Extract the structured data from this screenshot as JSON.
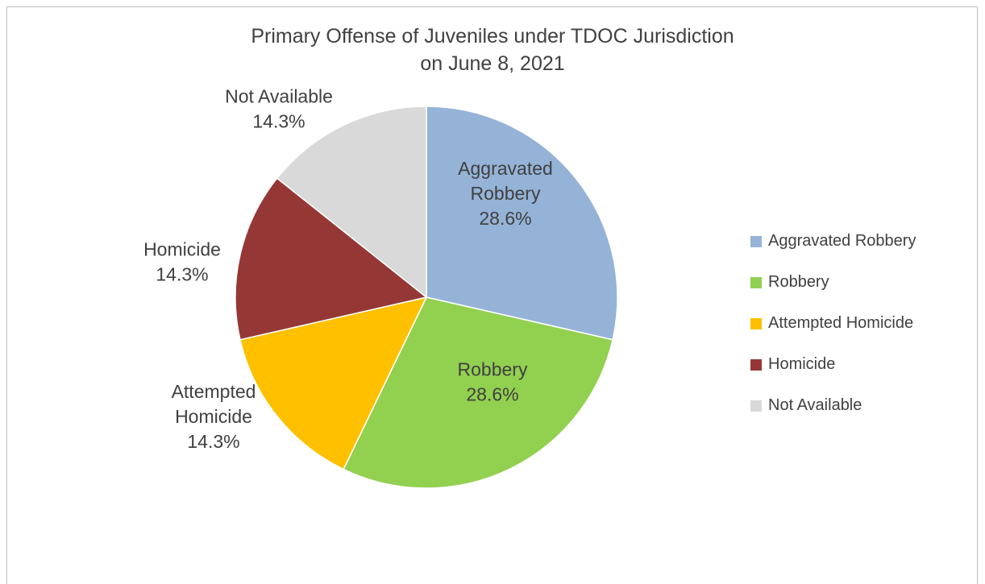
{
  "chart_data": {
    "type": "pie",
    "title": "Primary Offense of Juveniles under TDOC Jurisdiction",
    "subtitle": "on June 8, 2021",
    "legend_position": "right",
    "slices": [
      {
        "name": "Aggravated Robbery",
        "label_lines": [
          "Aggravated",
          "Robbery"
        ],
        "value": 28.6,
        "label": "28.6%",
        "color": "#95b3d7"
      },
      {
        "name": "Robbery",
        "label_lines": [
          "Robbery"
        ],
        "value": 28.6,
        "label": "28.6%",
        "color": "#92d050"
      },
      {
        "name": "Attempted Homicide",
        "label_lines": [
          "Attempted",
          "Homicide"
        ],
        "value": 14.3,
        "label": "14.3%",
        "color": "#ffc000"
      },
      {
        "name": "Homicide",
        "label_lines": [
          "Homicide"
        ],
        "value": 14.3,
        "label": "14.3%",
        "color": "#953735"
      },
      {
        "name": "Not Available",
        "label_lines": [
          "Not Available"
        ],
        "value": 14.3,
        "label": "14.3%",
        "color": "#d9d9d9"
      }
    ]
  }
}
